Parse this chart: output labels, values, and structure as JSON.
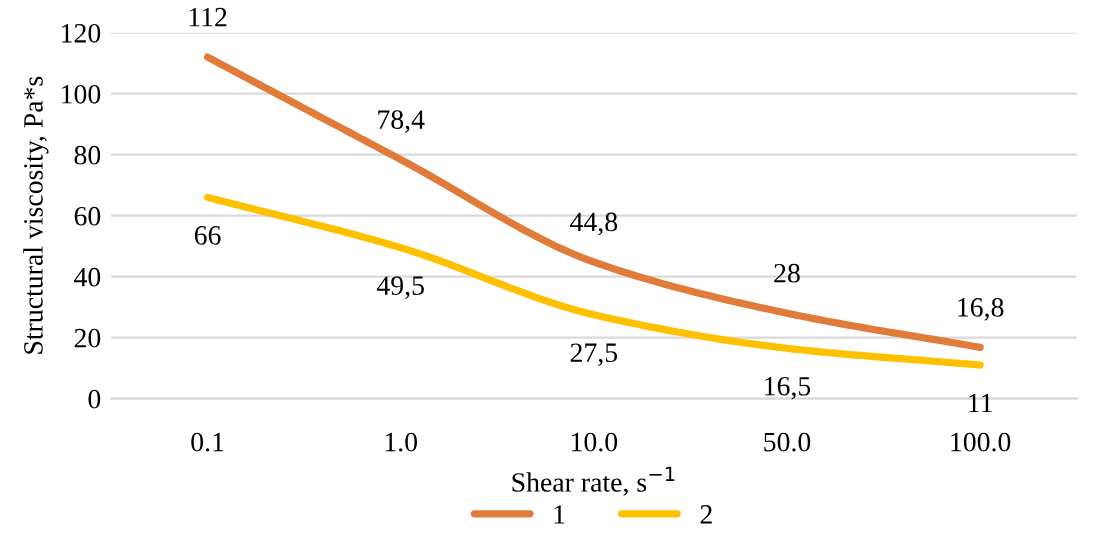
{
  "chart_data": {
    "type": "line",
    "xlabel": "Shear rate, s$^{−1}$",
    "ylabel": "Structural viscosity, Pa*s",
    "categories": [
      "0.1",
      "1.0",
      "10.0",
      "50.0",
      "100.0"
    ],
    "series": [
      {
        "name": "1",
        "color": "#e07b39",
        "values": [
          112,
          78.4,
          44.8,
          28,
          16.8
        ],
        "value_labels": [
          "112",
          "78,4",
          "44,8",
          "28",
          "16,8"
        ]
      },
      {
        "name": "2",
        "color": "#ffc000",
        "values": [
          66,
          49.5,
          27.5,
          16.5,
          11
        ],
        "value_labels": [
          "66",
          "49,5",
          "27,5",
          "16,5",
          "11"
        ]
      }
    ],
    "ylim": [
      0,
      120
    ],
    "yticks": [
      0,
      20,
      40,
      60,
      80,
      100,
      120
    ],
    "grid": "y",
    "legend": "bottom",
    "marker": "none",
    "line_style": "solid"
  }
}
